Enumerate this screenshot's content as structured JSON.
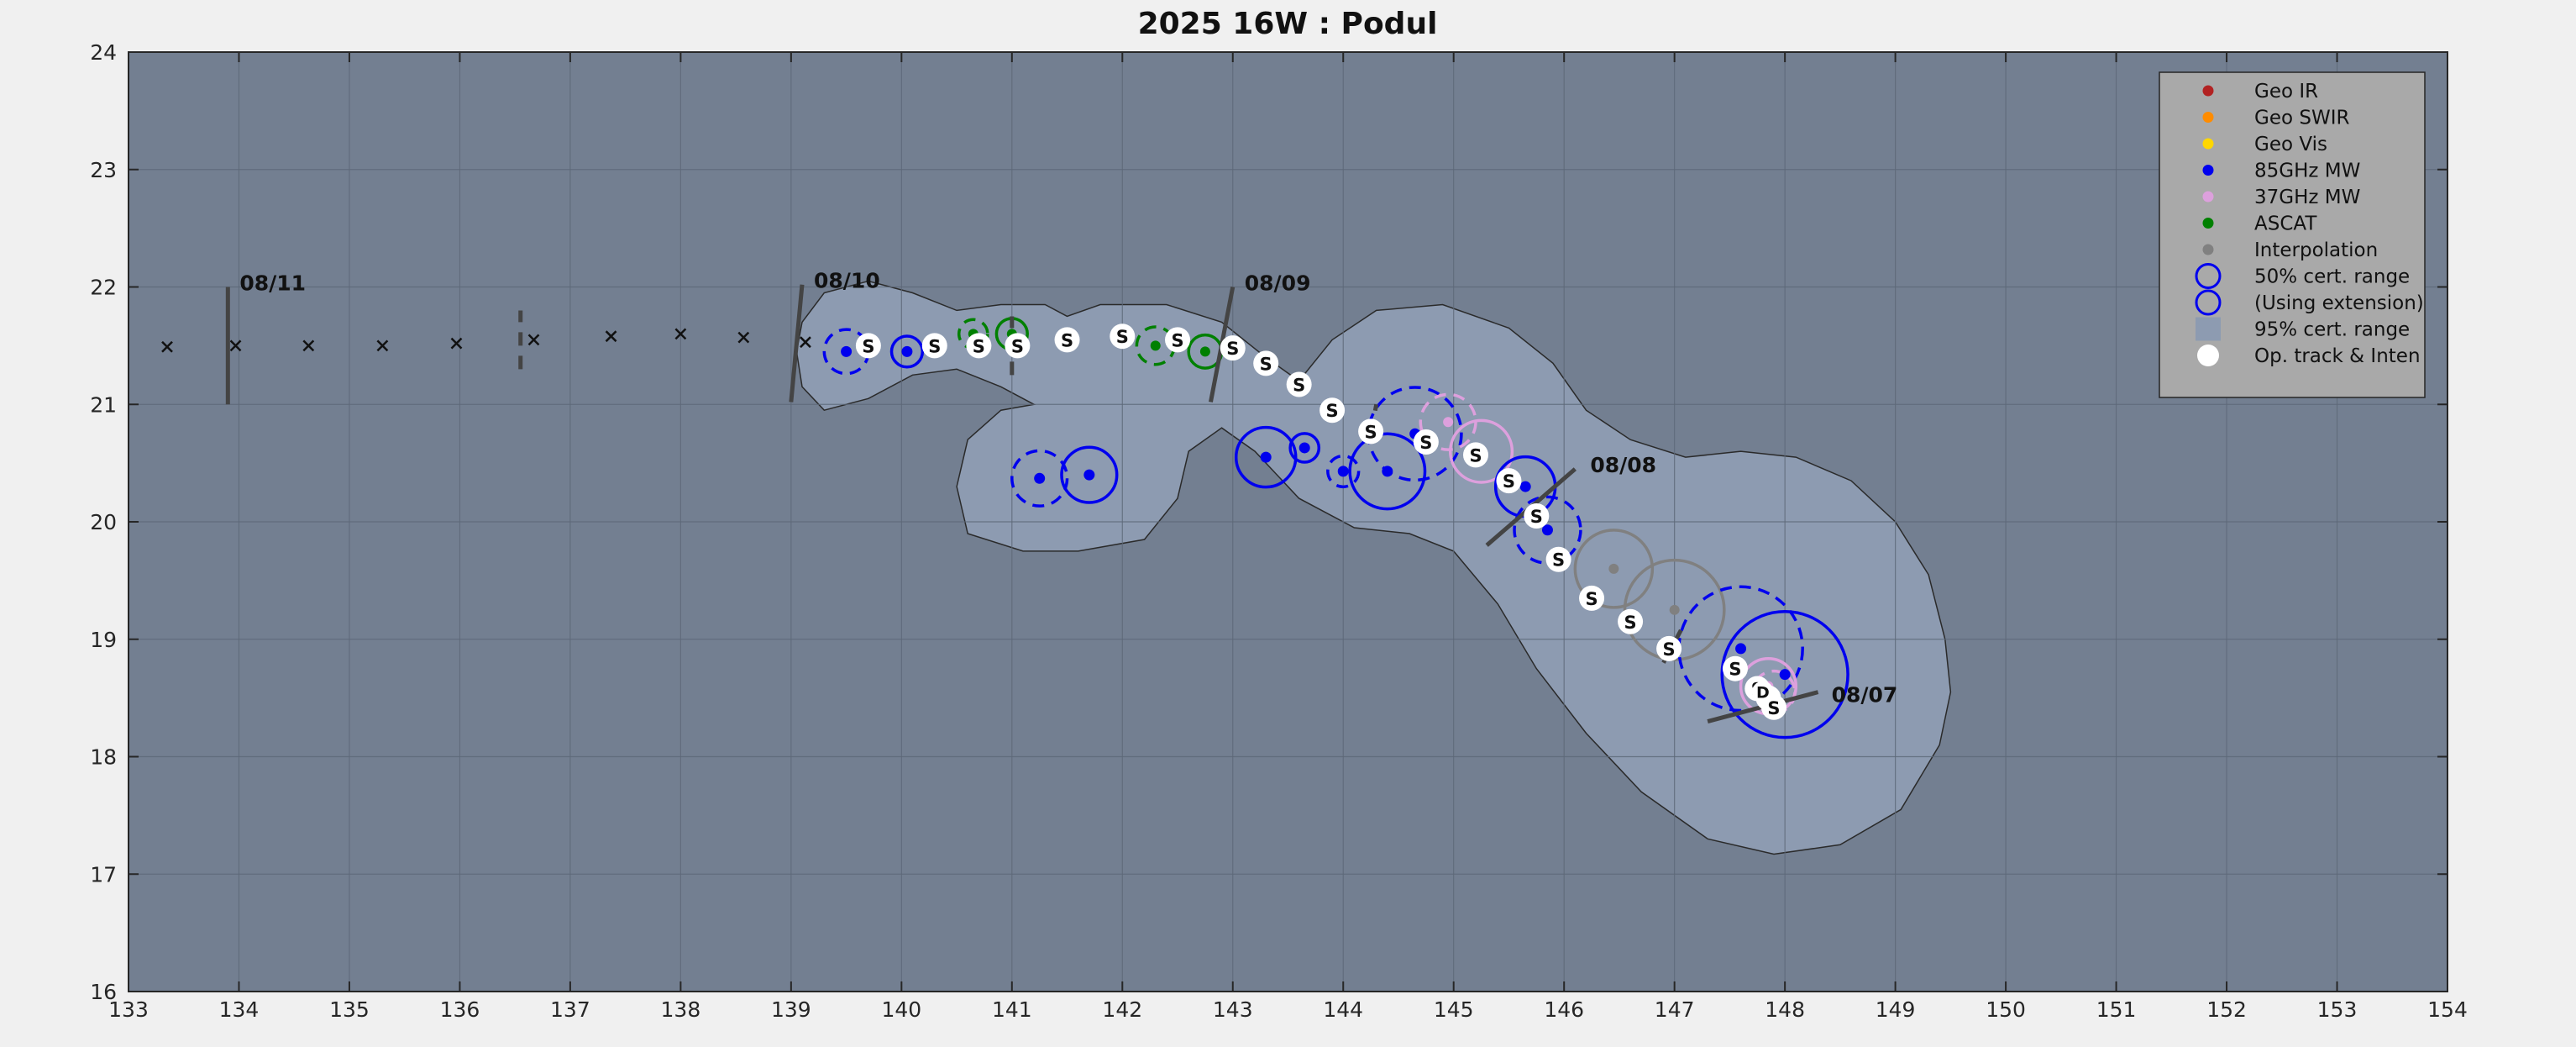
{
  "chart_data": {
    "type": "scatter",
    "title": "2025  16W :  Podul",
    "xlabel": "",
    "ylabel": "",
    "xlim": [
      133,
      154
    ],
    "ylim": [
      16,
      24
    ],
    "grid": true,
    "x_ticks": [
      "133",
      "134",
      "135",
      "136",
      "137",
      "138",
      "139",
      "140",
      "141",
      "142",
      "143",
      "144",
      "145",
      "146",
      "147",
      "148",
      "149",
      "150",
      "151",
      "152",
      "153",
      "154"
    ],
    "y_ticks": [
      "16",
      "17",
      "18",
      "19",
      "20",
      "21",
      "22",
      "23",
      "24"
    ],
    "legend_position": "top-right",
    "colors": {
      "plot_bg": "#737f91",
      "cone_fill": "#8d9bb1",
      "geo_ir": "#b22222",
      "geo_swir": "#ff8c00",
      "geo_vis": "#ffd700",
      "mw85": "#0000ee",
      "mw37": "#dda0dd",
      "ascat": "#008000",
      "interp": "#808080",
      "legend_bg": "#a9a9a9"
    },
    "legend": [
      {
        "label": "Geo IR",
        "marker": "dot",
        "color": "#b22222"
      },
      {
        "label": "Geo SWIR",
        "marker": "dot",
        "color": "#ff8c00"
      },
      {
        "label": "Geo Vis",
        "marker": "dot",
        "color": "#ffd700"
      },
      {
        "label": "85GHz MW",
        "marker": "dot",
        "color": "#0000ee"
      },
      {
        "label": "37GHz MW",
        "marker": "dot",
        "color": "#dda0dd"
      },
      {
        "label": "ASCAT",
        "marker": "dot",
        "color": "#008000"
      },
      {
        "label": "Interpolation",
        "marker": "dot",
        "color": "#808080"
      },
      {
        "label": "50% cert. range",
        "marker": "circle",
        "color": "#0000ee"
      },
      {
        "label": "(Using extension)",
        "marker": "circle",
        "color": "#0000ee"
      },
      {
        "label": "95% cert. range",
        "marker": "rect",
        "color": "#8d9bb1"
      },
      {
        "label": "Op. track & Inten",
        "marker": "white-dot",
        "color": "#ffffff"
      }
    ],
    "cone_outline": [
      [
        139.1,
        21.7
      ],
      [
        139.3,
        21.95
      ],
      [
        139.7,
        22.05
      ],
      [
        140.1,
        21.95
      ],
      [
        140.5,
        21.8
      ],
      [
        140.9,
        21.85
      ],
      [
        141.3,
        21.85
      ],
      [
        141.5,
        21.75
      ],
      [
        141.8,
        21.85
      ],
      [
        142.4,
        21.85
      ],
      [
        142.9,
        21.7
      ],
      [
        143.3,
        21.4
      ],
      [
        143.6,
        21.2
      ],
      [
        143.9,
        21.55
      ],
      [
        144.3,
        21.8
      ],
      [
        144.9,
        21.85
      ],
      [
        145.5,
        21.65
      ],
      [
        145.9,
        21.35
      ],
      [
        146.2,
        20.95
      ],
      [
        146.6,
        20.7
      ],
      [
        147.1,
        20.55
      ],
      [
        147.6,
        20.6
      ],
      [
        148.1,
        20.55
      ],
      [
        148.6,
        20.35
      ],
      [
        149.0,
        20.0
      ],
      [
        149.3,
        19.55
      ],
      [
        149.45,
        19.0
      ],
      [
        149.5,
        18.55
      ],
      [
        149.4,
        18.1
      ],
      [
        149.05,
        17.55
      ],
      [
        148.5,
        17.25
      ],
      [
        147.9,
        17.17
      ],
      [
        147.3,
        17.3
      ],
      [
        146.7,
        17.7
      ],
      [
        146.2,
        18.2
      ],
      [
        145.75,
        18.75
      ],
      [
        145.4,
        19.3
      ],
      [
        145.0,
        19.75
      ],
      [
        144.6,
        19.9
      ],
      [
        144.1,
        19.95
      ],
      [
        143.6,
        20.2
      ],
      [
        143.2,
        20.6
      ],
      [
        142.9,
        20.8
      ],
      [
        142.6,
        20.6
      ],
      [
        142.5,
        20.2
      ],
      [
        142.2,
        19.85
      ],
      [
        141.6,
        19.75
      ],
      [
        141.1,
        19.75
      ],
      [
        140.6,
        19.9
      ],
      [
        140.5,
        20.3
      ],
      [
        140.6,
        20.7
      ],
      [
        140.9,
        20.95
      ],
      [
        141.2,
        21.0
      ],
      [
        140.9,
        21.15
      ],
      [
        140.5,
        21.3
      ],
      [
        140.1,
        21.25
      ],
      [
        139.7,
        21.05
      ],
      [
        139.3,
        20.95
      ],
      [
        139.1,
        21.15
      ],
      [
        139.05,
        21.45
      ]
    ],
    "forecast_track": {
      "x": [
        133.35,
        133.97,
        134.63,
        135.3,
        135.97,
        136.67,
        137.37,
        138.0,
        138.57,
        139.13
      ],
      "y": [
        21.49,
        21.5,
        21.5,
        21.5,
        21.52,
        21.55,
        21.58,
        21.6,
        21.57,
        21.53
      ]
    },
    "date_markers": [
      {
        "label": "08/11",
        "x": 133.9,
        "y": 21.5,
        "x1": 133.9,
        "y1": 21.0,
        "x2": 133.9,
        "y2": 22.0,
        "dashed": false
      },
      {
        "label": "08/10",
        "x": 139.0,
        "y": 21.5,
        "x1": 139.0,
        "y1": 21.02,
        "x2": 139.1,
        "y2": 22.02,
        "dashed": false
      },
      {
        "label": "08/09",
        "x": 142.9,
        "y": 21.5,
        "x1": 142.8,
        "y1": 21.02,
        "x2": 143.0,
        "y2": 22.0,
        "dashed": false
      },
      {
        "label": "08/08",
        "x": 145.8,
        "y": 20.15,
        "x1": 145.3,
        "y1": 19.8,
        "x2": 146.1,
        "y2": 20.45,
        "dashed": false
      },
      {
        "label": "08/07",
        "x": 148.2,
        "y": 18.4,
        "x1": 147.3,
        "y1": 18.3,
        "x2": 148.3,
        "y2": 18.55,
        "dashed": false
      },
      {
        "label": "",
        "x": 136.6,
        "y": 21.55,
        "x1": 136.55,
        "y1": 21.3,
        "x2": 136.55,
        "y2": 21.8,
        "dashed": true
      },
      {
        "label": "",
        "x": 141.0,
        "y": 21.5,
        "x1": 141.0,
        "y1": 21.25,
        "x2": 141.0,
        "y2": 21.75,
        "dashed": true
      },
      {
        "label": "",
        "x": 144.3,
        "y": 20.8,
        "x1": 144.25,
        "y1": 20.75,
        "x2": 144.3,
        "y2": 21.0,
        "dashed": true
      },
      {
        "label": "",
        "x": 147.1,
        "y": 19.0,
        "x1": 146.9,
        "y1": 18.8,
        "x2": 147.1,
        "y2": 19.15,
        "dashed": true
      }
    ],
    "op_track_label": "S",
    "op_track": {
      "x": [
        139.7,
        140.3,
        140.7,
        141.05,
        141.5,
        142.0,
        142.5,
        143.0,
        143.3,
        143.6,
        143.9,
        144.25,
        144.75,
        145.2,
        145.5,
        145.75,
        145.95,
        146.25,
        146.6,
        146.95,
        147.55,
        147.75,
        147.85,
        147.9
      ],
      "y": [
        21.5,
        21.5,
        21.5,
        21.5,
        21.55,
        21.58,
        21.55,
        21.48,
        21.35,
        21.17,
        20.95,
        20.77,
        20.68,
        20.57,
        20.35,
        20.05,
        19.68,
        19.35,
        19.15,
        18.92,
        18.75,
        18.58,
        18.5,
        18.42
      ]
    },
    "op_track_alt_label": "D",
    "op_track_alt": {
      "x": [
        147.8
      ],
      "y": [
        18.55
      ]
    },
    "mw85_points": {
      "x": [
        139.5,
        140.05,
        141.25,
        141.7,
        143.3,
        143.65,
        144.0,
        144.4,
        144.65,
        145.65,
        145.85,
        147.6,
        148.0
      ],
      "y": [
        21.45,
        21.45,
        20.37,
        20.4,
        20.55,
        20.63,
        20.43,
        20.43,
        20.75,
        20.3,
        19.93,
        18.92,
        18.7
      ]
    },
    "mw37_points": {
      "x": [
        144.95,
        145.25,
        147.85
      ],
      "y": [
        20.85,
        20.6,
        18.6
      ]
    },
    "ascat_points": {
      "x": [
        140.65,
        141.0,
        142.3,
        142.75
      ],
      "y": [
        21.6,
        21.6,
        21.5,
        21.45
      ]
    },
    "interp_points": {
      "x": [
        146.45,
        147.0
      ],
      "y": [
        19.6,
        19.25
      ]
    },
    "cert_circles": [
      {
        "x": 139.5,
        "y": 21.45,
        "r": 0.2,
        "color": "#0000ee",
        "dashed": true
      },
      {
        "x": 140.05,
        "y": 21.45,
        "r": 0.14,
        "color": "#0000ee",
        "dashed": false
      },
      {
        "x": 140.65,
        "y": 21.6,
        "r": 0.13,
        "color": "#008000",
        "dashed": true
      },
      {
        "x": 141.0,
        "y": 21.6,
        "r": 0.14,
        "color": "#008000",
        "dashed": false
      },
      {
        "x": 142.3,
        "y": 21.5,
        "r": 0.17,
        "color": "#008000",
        "dashed": true
      },
      {
        "x": 142.75,
        "y": 21.45,
        "r": 0.15,
        "color": "#008000",
        "dashed": false
      },
      {
        "x": 141.25,
        "y": 20.37,
        "r": 0.25,
        "color": "#0000ee",
        "dashed": true
      },
      {
        "x": 141.7,
        "y": 20.4,
        "r": 0.25,
        "color": "#0000ee",
        "dashed": false
      },
      {
        "x": 143.3,
        "y": 20.55,
        "r": 0.27,
        "color": "#0000ee",
        "dashed": false
      },
      {
        "x": 143.65,
        "y": 20.63,
        "r": 0.13,
        "color": "#0000ee",
        "dashed": false
      },
      {
        "x": 144.0,
        "y": 20.43,
        "r": 0.14,
        "color": "#0000ee",
        "dashed": true
      },
      {
        "x": 144.4,
        "y": 20.43,
        "r": 0.34,
        "color": "#0000ee",
        "dashed": false
      },
      {
        "x": 144.65,
        "y": 20.75,
        "r": 0.42,
        "color": "#0000ee",
        "dashed": true
      },
      {
        "x": 144.95,
        "y": 20.85,
        "r": 0.25,
        "color": "#dda0dd",
        "dashed": true
      },
      {
        "x": 145.25,
        "y": 20.6,
        "r": 0.28,
        "color": "#dda0dd",
        "dashed": false
      },
      {
        "x": 145.65,
        "y": 20.3,
        "r": 0.27,
        "color": "#0000ee",
        "dashed": false
      },
      {
        "x": 145.85,
        "y": 19.93,
        "r": 0.3,
        "color": "#0000ee",
        "dashed": true
      },
      {
        "x": 146.45,
        "y": 19.6,
        "r": 0.35,
        "color": "#808080",
        "dashed": false
      },
      {
        "x": 147.0,
        "y": 19.25,
        "r": 0.45,
        "color": "#808080",
        "dashed": false
      },
      {
        "x": 147.6,
        "y": 18.92,
        "r": 0.56,
        "color": "#0000ee",
        "dashed": true
      },
      {
        "x": 148.0,
        "y": 18.7,
        "r": 0.57,
        "color": "#0000ee",
        "dashed": false
      },
      {
        "x": 147.85,
        "y": 18.6,
        "r": 0.25,
        "color": "#dda0dd",
        "dashed": false
      },
      {
        "x": 147.9,
        "y": 18.55,
        "r": 0.19,
        "color": "#dda0dd",
        "dashed": true
      }
    ]
  }
}
